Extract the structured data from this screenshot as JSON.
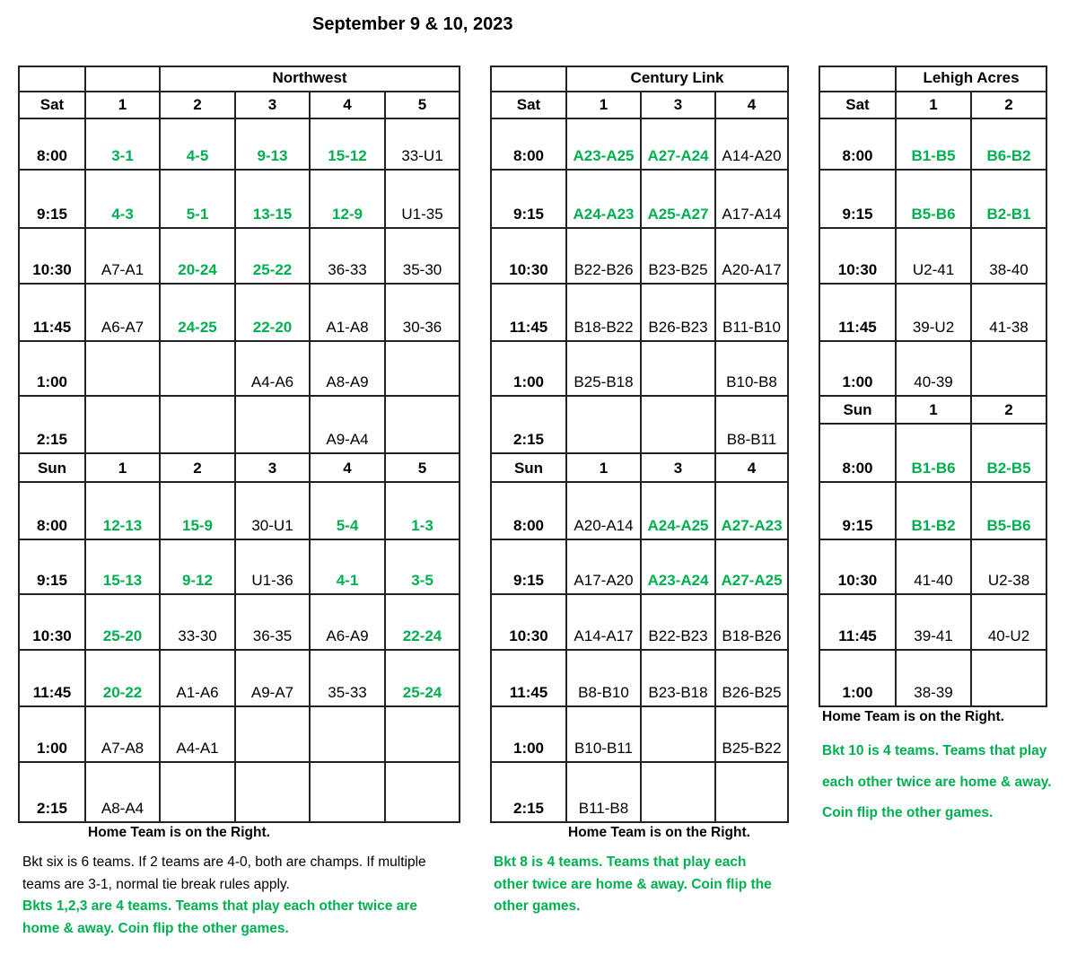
{
  "title": "September 9 & 10, 2023",
  "colors": {
    "highlight": "#00b050",
    "text": "#000000"
  },
  "tables": [
    {
      "venue": "Northwest",
      "sat": {
        "day": "Sat",
        "fields": [
          "1",
          "2",
          "3",
          "4",
          "5"
        ],
        "rows": [
          {
            "time": "8:00",
            "cells": [
              {
                "t": "3-1",
                "g": true
              },
              {
                "t": "4-5",
                "g": true
              },
              {
                "t": "9-13",
                "g": true
              },
              {
                "t": "15-12",
                "g": true
              },
              {
                "t": "33-U1"
              }
            ]
          },
          {
            "time": "9:15",
            "cells": [
              {
                "t": "4-3",
                "g": true
              },
              {
                "t": "5-1",
                "g": true
              },
              {
                "t": "13-15",
                "g": true
              },
              {
                "t": "12-9",
                "g": true
              },
              {
                "t": "U1-35"
              }
            ]
          },
          {
            "time": "10:30",
            "cells": [
              {
                "t": "A7-A1"
              },
              {
                "t": "20-24",
                "g": true
              },
              {
                "t": "25-22",
                "g": true
              },
              {
                "t": "36-33"
              },
              {
                "t": "35-30"
              }
            ]
          },
          {
            "time": "11:45",
            "cells": [
              {
                "t": "A6-A7"
              },
              {
                "t": "24-25",
                "g": true
              },
              {
                "t": "22-20",
                "g": true
              },
              {
                "t": "A1-A8"
              },
              {
                "t": "30-36"
              }
            ]
          },
          {
            "time": "1:00",
            "cells": [
              {
                "t": ""
              },
              {
                "t": ""
              },
              {
                "t": "A4-A6"
              },
              {
                "t": "A8-A9"
              },
              {
                "t": ""
              }
            ]
          },
          {
            "time": "2:15",
            "cells": [
              {
                "t": ""
              },
              {
                "t": ""
              },
              {
                "t": ""
              },
              {
                "t": "A9-A4"
              },
              {
                "t": ""
              }
            ]
          }
        ]
      },
      "sun": {
        "day": "Sun",
        "fields": [
          "1",
          "2",
          "3",
          "4",
          "5"
        ],
        "rows": [
          {
            "time": "8:00",
            "cells": [
              {
                "t": "12-13",
                "g": true
              },
              {
                "t": "15-9",
                "g": true
              },
              {
                "t": "30-U1"
              },
              {
                "t": "5-4",
                "g": true
              },
              {
                "t": "1-3",
                "g": true
              }
            ]
          },
          {
            "time": "9:15",
            "cells": [
              {
                "t": "15-13",
                "g": true
              },
              {
                "t": "9-12",
                "g": true
              },
              {
                "t": "U1-36"
              },
              {
                "t": "4-1",
                "g": true
              },
              {
                "t": "3-5",
                "g": true
              }
            ]
          },
          {
            "time": "10:30",
            "cells": [
              {
                "t": "25-20",
                "g": true
              },
              {
                "t": "33-30"
              },
              {
                "t": "36-35"
              },
              {
                "t": "A6-A9"
              },
              {
                "t": "22-24",
                "g": true
              }
            ]
          },
          {
            "time": "11:45",
            "cells": [
              {
                "t": "20-22",
                "g": true
              },
              {
                "t": "A1-A6"
              },
              {
                "t": "A9-A7"
              },
              {
                "t": "35-33"
              },
              {
                "t": "25-24",
                "g": true
              }
            ]
          },
          {
            "time": "1:00",
            "cells": [
              {
                "t": "A7-A8"
              },
              {
                "t": "A4-A1"
              },
              {
                "t": ""
              },
              {
                "t": ""
              },
              {
                "t": ""
              }
            ]
          },
          {
            "time": "2:15",
            "cells": [
              {
                "t": "A8-A4"
              },
              {
                "t": ""
              },
              {
                "t": ""
              },
              {
                "t": ""
              },
              {
                "t": ""
              }
            ]
          }
        ]
      },
      "footer": "Home Team is on the Right."
    },
    {
      "venue": "Century Link",
      "sat": {
        "day": "Sat",
        "fields": [
          "1",
          "3",
          "4"
        ],
        "rows": [
          {
            "time": "8:00",
            "cells": [
              {
                "t": "A23-A25",
                "g": true
              },
              {
                "t": "A27-A24",
                "g": true
              },
              {
                "t": "A14-A20"
              }
            ]
          },
          {
            "time": "9:15",
            "cells": [
              {
                "t": "A24-A23",
                "g": true
              },
              {
                "t": "A25-A27",
                "g": true
              },
              {
                "t": "A17-A14"
              }
            ]
          },
          {
            "time": "10:30",
            "cells": [
              {
                "t": "B22-B26"
              },
              {
                "t": "B23-B25"
              },
              {
                "t": "A20-A17"
              }
            ]
          },
          {
            "time": "11:45",
            "cells": [
              {
                "t": "B18-B22"
              },
              {
                "t": "B26-B23"
              },
              {
                "t": "B11-B10"
              }
            ]
          },
          {
            "time": "1:00",
            "cells": [
              {
                "t": "B25-B18"
              },
              {
                "t": ""
              },
              {
                "t": "B10-B8"
              }
            ]
          },
          {
            "time": "2:15",
            "cells": [
              {
                "t": ""
              },
              {
                "t": ""
              },
              {
                "t": "B8-B11"
              }
            ]
          }
        ]
      },
      "sun": {
        "day": "Sun",
        "fields": [
          "1",
          "3",
          "4"
        ],
        "rows": [
          {
            "time": "8:00",
            "cells": [
              {
                "t": "A20-A14"
              },
              {
                "t": "A24-A25",
                "g": true
              },
              {
                "t": "A27-A23",
                "g": true
              }
            ]
          },
          {
            "time": "9:15",
            "cells": [
              {
                "t": "A17-A20"
              },
              {
                "t": "A23-A24",
                "g": true
              },
              {
                "t": "A27-A25",
                "g": true
              }
            ]
          },
          {
            "time": "10:30",
            "cells": [
              {
                "t": "A14-A17"
              },
              {
                "t": "B22-B23"
              },
              {
                "t": "B18-B26"
              }
            ]
          },
          {
            "time": "11:45",
            "cells": [
              {
                "t": "B8-B10"
              },
              {
                "t": "B23-B18"
              },
              {
                "t": "B26-B25"
              }
            ]
          },
          {
            "time": "1:00",
            "cells": [
              {
                "t": "B10-B11"
              },
              {
                "t": ""
              },
              {
                "t": "B25-B22"
              }
            ]
          },
          {
            "time": "2:15",
            "cells": [
              {
                "t": "B11-B8"
              },
              {
                "t": ""
              },
              {
                "t": ""
              }
            ]
          }
        ]
      },
      "footer": "Home Team is on the Right."
    },
    {
      "venue": "Lehigh Acres",
      "sat": {
        "day": "Sat",
        "fields": [
          "1",
          "2"
        ],
        "rows": [
          {
            "time": "8:00",
            "cells": [
              {
                "t": "B1-B5",
                "g": true
              },
              {
                "t": "B6-B2",
                "g": true
              }
            ]
          },
          {
            "time": "9:15",
            "cells": [
              {
                "t": "B5-B6",
                "g": true
              },
              {
                "t": "B2-B1",
                "g": true
              }
            ]
          },
          {
            "time": "10:30",
            "cells": [
              {
                "t": "U2-41"
              },
              {
                "t": "38-40"
              }
            ]
          },
          {
            "time": "11:45",
            "cells": [
              {
                "t": "39-U2"
              },
              {
                "t": "41-38"
              }
            ]
          },
          {
            "time": "1:00",
            "cells": [
              {
                "t": "40-39"
              },
              {
                "t": ""
              }
            ]
          }
        ]
      },
      "sun": {
        "day": "Sun",
        "fields": [
          "1",
          "2"
        ],
        "rows": [
          {
            "time": "8:00",
            "cells": [
              {
                "t": "B1-B6",
                "g": true
              },
              {
                "t": "B2-B5",
                "g": true
              }
            ]
          },
          {
            "time": "9:15",
            "cells": [
              {
                "t": "B1-B2",
                "g": true
              },
              {
                "t": "B5-B6",
                "g": true
              }
            ]
          },
          {
            "time": "10:30",
            "cells": [
              {
                "t": "41-40"
              },
              {
                "t": "U2-38"
              }
            ]
          },
          {
            "time": "11:45",
            "cells": [
              {
                "t": "39-41"
              },
              {
                "t": "40-U2"
              }
            ]
          },
          {
            "time": "1:00",
            "cells": [
              {
                "t": "38-39"
              },
              {
                "t": ""
              }
            ]
          }
        ]
      },
      "footer": "Home Team is on the Right."
    }
  ],
  "notes": {
    "northwest_1": "Bkt six is 6 teams. If 2 teams are 4-0, both are champs. If multiple teams are 3-1, normal tie break rules apply.",
    "northwest_2": "Bkts 1,2,3 are 4 teams. Teams that play each other twice are home & away. Coin flip the other games.",
    "century": "Bkt 8 is 4 teams. Teams that play each other twice are home & away. Coin flip the other games.",
    "lehigh": "Bkt 10 is 4 teams. Teams that play each other twice are home & away. Coin flip the other games."
  }
}
